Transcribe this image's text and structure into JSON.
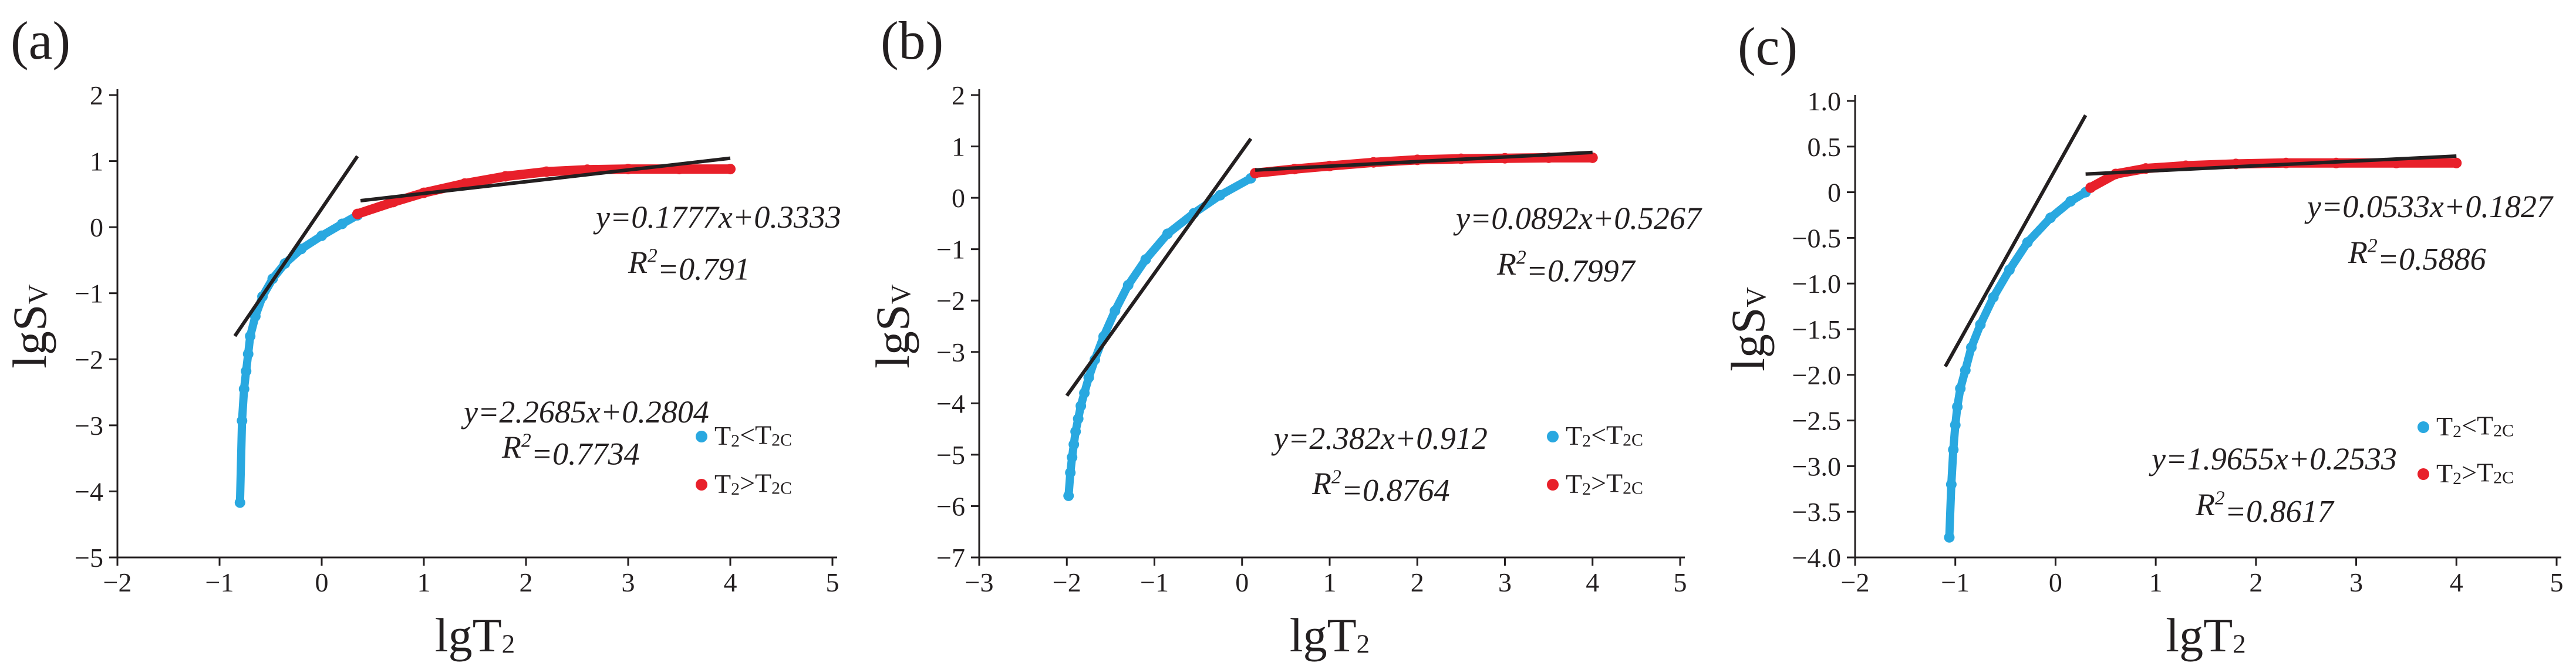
{
  "chart_data": [
    {
      "type": "scatter",
      "panel_label": "(a)",
      "xlabel": "lgT",
      "xlabel_sub": "2",
      "ylabel": "lgS",
      "ylabel_sub": "V",
      "xlim": [
        -2,
        5
      ],
      "ylim": [
        -5,
        2
      ],
      "xticks": [
        "−2",
        "−1",
        "0",
        "1",
        "2",
        "3",
        "4",
        "5"
      ],
      "xtick_values": [
        -2,
        -1,
        0,
        1,
        2,
        3,
        4,
        5
      ],
      "yticks": [
        "−5",
        "−4",
        "−3",
        "−2",
        "−1",
        "0",
        "1",
        "2"
      ],
      "ytick_values": [
        -5,
        -4,
        -3,
        -2,
        -1,
        0,
        1,
        2
      ],
      "legend_position": "lower-right",
      "series": [
        {
          "name": "T2<T2c",
          "legend_label": {
            "main": "T",
            "sub1": "2",
            "mid": "<T",
            "sub2": "2C"
          },
          "color": "#29a8e0",
          "points": [
            [
              -0.8,
              -4.17
            ],
            [
              -0.78,
              -2.93
            ],
            [
              -0.76,
              -2.45
            ],
            [
              -0.74,
              -2.18
            ],
            [
              -0.72,
              -1.92
            ],
            [
              -0.7,
              -1.65
            ],
            [
              -0.65,
              -1.35
            ],
            [
              -0.58,
              -1.05
            ],
            [
              -0.48,
              -0.78
            ],
            [
              -0.36,
              -0.55
            ],
            [
              -0.2,
              -0.33
            ],
            [
              0.0,
              -0.13
            ],
            [
              0.2,
              0.05
            ],
            [
              0.35,
              0.18
            ]
          ]
        },
        {
          "name": "T2>T2c",
          "legend_label": {
            "main": "T",
            "sub1": "2",
            "mid": ">T",
            "sub2": "2C"
          },
          "color": "#e8202a",
          "points": [
            [
              0.35,
              0.2
            ],
            [
              0.7,
              0.38
            ],
            [
              1.0,
              0.52
            ],
            [
              1.4,
              0.66
            ],
            [
              1.8,
              0.77
            ],
            [
              2.2,
              0.84
            ],
            [
              2.6,
              0.87
            ],
            [
              3.0,
              0.88
            ],
            [
              3.5,
              0.88
            ],
            [
              4.0,
              0.88
            ]
          ]
        }
      ],
      "fits": [
        {
          "equation": "y=2.2685x+0.2804",
          "r2": "=0.7734",
          "x_range": [
            -0.85,
            0.35
          ],
          "slope": 2.2685,
          "intercept": 0.2804
        },
        {
          "equation": "y=0.1777x+0.3333",
          "r2": "=0.791",
          "x_range": [
            0.38,
            4.0
          ],
          "slope": 0.1777,
          "intercept": 0.3333
        }
      ]
    },
    {
      "type": "scatter",
      "panel_label": "(b)",
      "xlabel": "lgT",
      "xlabel_sub": "2",
      "ylabel": "lgS",
      "ylabel_sub": "V",
      "xlim": [
        -3,
        5
      ],
      "ylim": [
        -7,
        2
      ],
      "xticks": [
        "−3",
        "−2",
        "−1",
        "0",
        "1",
        "2",
        "3",
        "4",
        "5"
      ],
      "xtick_values": [
        -3,
        -2,
        -1,
        0,
        1,
        2,
        3,
        4,
        5
      ],
      "yticks": [
        "−7",
        "−6",
        "−5",
        "−4",
        "−3",
        "−2",
        "−1",
        "0",
        "1",
        "2"
      ],
      "ytick_values": [
        -7,
        -6,
        -5,
        -4,
        -3,
        -2,
        -1,
        0,
        1,
        2
      ],
      "legend_position": "lower-right",
      "series": [
        {
          "name": "T2<T2c",
          "legend_label": {
            "main": "T",
            "sub1": "2",
            "mid": "<T",
            "sub2": "2C"
          },
          "color": "#29a8e0",
          "points": [
            [
              -1.98,
              -5.8
            ],
            [
              -1.96,
              -5.35
            ],
            [
              -1.94,
              -5.05
            ],
            [
              -1.92,
              -4.8
            ],
            [
              -1.9,
              -4.55
            ],
            [
              -1.87,
              -4.3
            ],
            [
              -1.84,
              -4.05
            ],
            [
              -1.8,
              -3.8
            ],
            [
              -1.75,
              -3.5
            ],
            [
              -1.68,
              -3.15
            ],
            [
              -1.58,
              -2.7
            ],
            [
              -1.45,
              -2.2
            ],
            [
              -1.3,
              -1.7
            ],
            [
              -1.1,
              -1.2
            ],
            [
              -0.85,
              -0.7
            ],
            [
              -0.55,
              -0.3
            ],
            [
              -0.25,
              0.05
            ],
            [
              0.1,
              0.38
            ]
          ]
        },
        {
          "name": "T2>T2c",
          "legend_label": {
            "main": "T",
            "sub1": "2",
            "mid": ">T",
            "sub2": "2C"
          },
          "color": "#e8202a",
          "points": [
            [
              0.15,
              0.48
            ],
            [
              0.6,
              0.56
            ],
            [
              1.0,
              0.62
            ],
            [
              1.5,
              0.69
            ],
            [
              2.0,
              0.74
            ],
            [
              2.5,
              0.76
            ],
            [
              3.0,
              0.77
            ],
            [
              3.5,
              0.78
            ],
            [
              4.0,
              0.78
            ]
          ]
        }
      ],
      "fits": [
        {
          "equation": "y=2.382x+0.912",
          "r2": "=0.8764",
          "x_range": [
            -2.0,
            0.1
          ],
          "slope": 2.382,
          "intercept": 0.912
        },
        {
          "equation": "y=0.0892x+0.5267",
          "r2": "=0.7997",
          "x_range": [
            0.15,
            4.0
          ],
          "slope": 0.0892,
          "intercept": 0.5267
        }
      ]
    },
    {
      "type": "scatter",
      "panel_label": "(c)",
      "xlabel": "lgT",
      "xlabel_sub": "2",
      "ylabel": "lgS",
      "ylabel_sub": "V",
      "xlim": [
        -2,
        5
      ],
      "ylim": [
        -4,
        1
      ],
      "xticks": [
        "−2",
        "−1",
        "0",
        "1",
        "2",
        "3",
        "4",
        "5"
      ],
      "xtick_values": [
        -2,
        -1,
        0,
        1,
        2,
        3,
        4,
        5
      ],
      "yticks": [
        "−4.0",
        "−3.5",
        "−3.0",
        "−2.5",
        "−2.0",
        "−1.5",
        "−1.0",
        "−0.5",
        "0",
        "0.5",
        "1.0"
      ],
      "ytick_values": [
        -4,
        -3.5,
        -3,
        -2.5,
        -2,
        -1.5,
        -1,
        -0.5,
        0,
        0.5,
        1
      ],
      "legend_position": "lower-right",
      "series": [
        {
          "name": "T2<T2c",
          "legend_label": {
            "main": "T",
            "sub1": "2",
            "mid": "<T",
            "sub2": "2C"
          },
          "color": "#29a8e0",
          "points": [
            [
              -1.06,
              -3.78
            ],
            [
              -1.04,
              -3.2
            ],
            [
              -1.02,
              -2.82
            ],
            [
              -1.0,
              -2.55
            ],
            [
              -0.98,
              -2.35
            ],
            [
              -0.95,
              -2.15
            ],
            [
              -0.9,
              -1.95
            ],
            [
              -0.84,
              -1.7
            ],
            [
              -0.75,
              -1.45
            ],
            [
              -0.62,
              -1.15
            ],
            [
              -0.46,
              -0.85
            ],
            [
              -0.28,
              -0.55
            ],
            [
              -0.05,
              -0.28
            ],
            [
              0.15,
              -0.1
            ],
            [
              0.3,
              0.0
            ]
          ]
        },
        {
          "name": "T2>T2c",
          "legend_label": {
            "main": "T",
            "sub1": "2",
            "mid": ">T",
            "sub2": "2C"
          },
          "color": "#e8202a",
          "points": [
            [
              0.35,
              0.05
            ],
            [
              0.6,
              0.2
            ],
            [
              0.9,
              0.26
            ],
            [
              1.3,
              0.29
            ],
            [
              1.8,
              0.31
            ],
            [
              2.3,
              0.32
            ],
            [
              2.8,
              0.32
            ],
            [
              3.4,
              0.32
            ],
            [
              4.0,
              0.32
            ]
          ]
        }
      ],
      "fits": [
        {
          "equation": "y=1.9655x+0.2533",
          "r2": "=0.8617",
          "x_range": [
            -1.1,
            0.3
          ],
          "slope": 1.9655,
          "intercept": 0.2533
        },
        {
          "equation": "y=0.0533x+0.1827",
          "r2": "=0.5886",
          "x_range": [
            0.3,
            4.0
          ],
          "slope": 0.0533,
          "intercept": 0.1827
        }
      ]
    }
  ]
}
